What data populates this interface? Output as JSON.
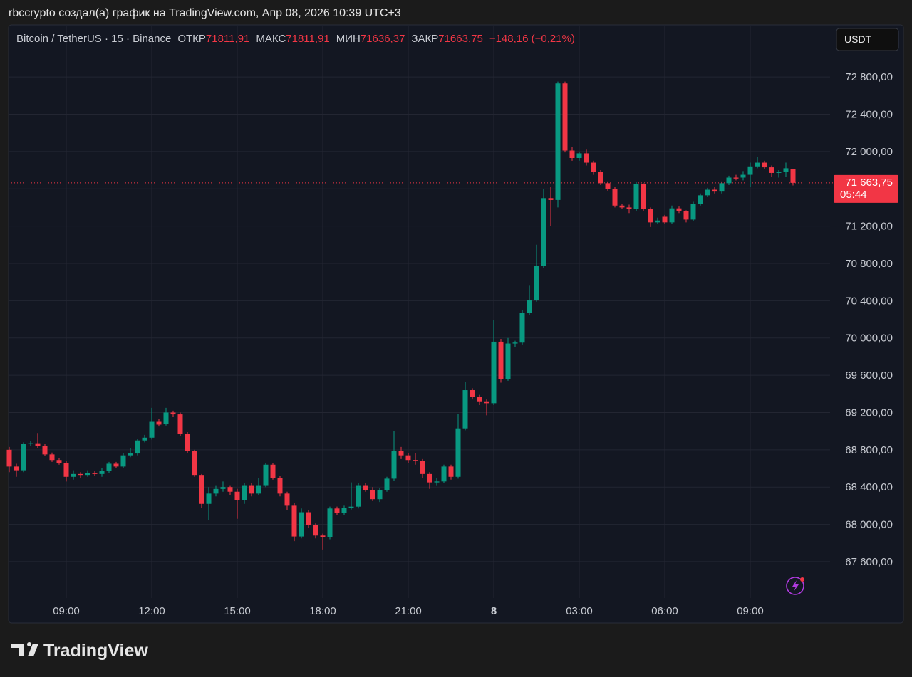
{
  "header": {
    "attribution": "rbccrypto создал(а) график на TradingView.com, Апр 08, 2026 10:39 UTC+3",
    "logo": "TradingView"
  },
  "chart_data": {
    "type": "candlestick",
    "symbol": "Bitcoin / TetherUS · 15 · Binance",
    "legend": [
      {
        "label": "ОТКР",
        "value": "71811,91"
      },
      {
        "label": "МАКС",
        "value": "71811,91"
      },
      {
        "label": "МИН",
        "value": "71636,37"
      },
      {
        "label": "ЗАКР",
        "value": "71663,75"
      }
    ],
    "change": "−148,16 (−0,21%)",
    "currency": "USDT",
    "last_price": {
      "label": "71 663,75",
      "countdown": "05:44"
    },
    "up_color": "#089981",
    "down_color": "#f23645",
    "grid": true,
    "ylim": [
      67210,
      73320
    ],
    "yticks": [
      {
        "value": 67600,
        "label": "67 600,00"
      },
      {
        "value": 68000,
        "label": "68 000,00"
      },
      {
        "value": 68400,
        "label": "68 400,00"
      },
      {
        "value": 68800,
        "label": "68 800,00"
      },
      {
        "value": 69200,
        "label": "69 200,00"
      },
      {
        "value": 69600,
        "label": "69 600,00"
      },
      {
        "value": 70000,
        "label": "70 000,00"
      },
      {
        "value": 70400,
        "label": "70 400,00"
      },
      {
        "value": 70800,
        "label": "70 800,00"
      },
      {
        "value": 71200,
        "label": "71 200,00"
      },
      {
        "value": 71600,
        "label": "71 600,00"
      },
      {
        "value": 72000,
        "label": "72 000,00"
      },
      {
        "value": 72400,
        "label": "72 400,00"
      },
      {
        "value": 72800,
        "label": "72 800,00"
      }
    ],
    "categories": [
      null,
      null,
      null,
      null,
      null,
      null,
      null,
      null,
      "09:00",
      null,
      null,
      null,
      null,
      null,
      null,
      null,
      null,
      null,
      null,
      null,
      "12:00",
      null,
      null,
      null,
      null,
      null,
      null,
      null,
      null,
      null,
      null,
      null,
      "15:00",
      null,
      null,
      null,
      null,
      null,
      null,
      null,
      null,
      null,
      null,
      null,
      "18:00",
      null,
      null,
      null,
      null,
      null,
      null,
      null,
      null,
      null,
      null,
      null,
      "21:00",
      null,
      null,
      null,
      null,
      null,
      null,
      null,
      null,
      null,
      null,
      null,
      "8",
      null,
      null,
      null,
      null,
      null,
      null,
      null,
      null,
      null,
      null,
      null,
      "03:00",
      null,
      null,
      null,
      null,
      null,
      null,
      null,
      null,
      null,
      null,
      null,
      "06:00",
      null,
      null,
      null,
      null,
      null,
      null,
      null,
      null,
      null,
      null,
      null,
      "09:00",
      null,
      null,
      null,
      null,
      null,
      null
    ],
    "open": [
      68800,
      68620,
      68580,
      68860,
      68870,
      68840,
      68750,
      68690,
      68660,
      68510,
      68540,
      68530,
      68550,
      68540,
      68570,
      68650,
      68620,
      68740,
      68760,
      68900,
      68930,
      69100,
      69080,
      69200,
      69180,
      68970,
      68790,
      68530,
      68220,
      68330,
      68380,
      68400,
      68350,
      68260,
      68420,
      68330,
      68420,
      68640,
      68500,
      68330,
      68200,
      67870,
      68130,
      67990,
      67880,
      67860,
      68170,
      68120,
      68180,
      68190,
      68420,
      68370,
      68270,
      68370,
      68490,
      68790,
      68740,
      68690,
      68680,
      68540,
      68450,
      68460,
      68620,
      68510,
      69030,
      69440,
      69370,
      69320,
      69300,
      69960,
      69560,
      69940,
      69950,
      70270,
      70410,
      70770,
      71500,
      71480,
      72730,
      72010,
      71930,
      71980,
      71880,
      71780,
      71660,
      71600,
      71420,
      71400,
      71380,
      71650,
      71380,
      71240,
      71300,
      71240,
      71390,
      71360,
      71270,
      71440,
      71530,
      71590,
      71570,
      71660,
      71720,
      71720,
      71750,
      71840,
      71880,
      71830,
      71770,
      71780,
      71811.91
    ],
    "high": [
      68830,
      68650,
      68880,
      68890,
      68980,
      68860,
      68770,
      68710,
      68680,
      68580,
      68560,
      68580,
      68570,
      68600,
      68670,
      68670,
      68760,
      68820,
      68920,
      68960,
      69250,
      69130,
      69250,
      69220,
      69200,
      68990,
      68800,
      68540,
      68400,
      68420,
      68460,
      68420,
      68380,
      68440,
      68440,
      68500,
      68660,
      68660,
      68520,
      68350,
      68230,
      68170,
      68150,
      68010,
      67900,
      68190,
      68190,
      68200,
      68450,
      68440,
      68440,
      68400,
      68390,
      68510,
      69000,
      68830,
      68760,
      68760,
      68700,
      68560,
      68500,
      68640,
      68640,
      69180,
      69530,
      69460,
      69390,
      69340,
      70190,
      69990,
      70000,
      69970,
      70300,
      70560,
      71000,
      71600,
      71620,
      72750,
      72750,
      72050,
      72000,
      72020,
      71900,
      71800,
      71680,
      71620,
      71440,
      71430,
      71670,
      71660,
      71400,
      71290,
      71320,
      71420,
      71410,
      71370,
      71460,
      71550,
      71610,
      71620,
      71680,
      71740,
      71750,
      71790,
      71880,
      71940,
      71900,
      71850,
      71800,
      71880,
      71811.91
    ],
    "low": [
      68560,
      68510,
      68560,
      68840,
      68820,
      68730,
      68670,
      68640,
      68460,
      68480,
      68500,
      68510,
      68520,
      68510,
      68550,
      68600,
      68600,
      68720,
      68740,
      68880,
      68910,
      69050,
      69060,
      69150,
      68950,
      68760,
      68510,
      68180,
      68050,
      68300,
      68350,
      68310,
      68060,
      68220,
      68300,
      68310,
      68400,
      68480,
      68300,
      68150,
      67820,
      67850,
      67960,
      67850,
      67730,
      67840,
      68100,
      68100,
      68160,
      68170,
      68350,
      68250,
      68240,
      68350,
      68470,
      68700,
      68660,
      68640,
      68500,
      68380,
      68420,
      68440,
      68480,
      68490,
      69010,
      69340,
      69280,
      69170,
      69280,
      69520,
      69540,
      69900,
      69930,
      70250,
      70390,
      70750,
      71200,
      71400,
      71990,
      71900,
      71900,
      71850,
      71750,
      71640,
      71580,
      71400,
      71380,
      71340,
      71360,
      71360,
      71190,
      71220,
      71220,
      71220,
      71340,
      71240,
      71250,
      71420,
      71510,
      71550,
      71550,
      71640,
      71690,
      71690,
      71620,
      71820,
      71810,
      71730,
      71720,
      71730,
      71636.37
    ],
    "close": [
      68620,
      68580,
      68860,
      68870,
      68840,
      68750,
      68690,
      68660,
      68510,
      68540,
      68530,
      68550,
      68540,
      68570,
      68650,
      68620,
      68740,
      68760,
      68900,
      68930,
      69100,
      69070,
      69200,
      69180,
      68970,
      68790,
      68530,
      68220,
      68330,
      68380,
      68400,
      68350,
      68260,
      68420,
      68330,
      68420,
      68640,
      68500,
      68330,
      68200,
      67870,
      68130,
      67990,
      67880,
      67860,
      68170,
      68120,
      68180,
      68190,
      68420,
      68370,
      68270,
      68370,
      68490,
      68790,
      68740,
      68690,
      68680,
      68540,
      68450,
      68460,
      68620,
      68510,
      69030,
      69440,
      69370,
      69320,
      69300,
      69960,
      69560,
      69940,
      69950,
      70270,
      70410,
      70770,
      71500,
      71480,
      72730,
      72010,
      71930,
      71980,
      71880,
      71780,
      71660,
      71600,
      71420,
      71400,
      71380,
      71650,
      71380,
      71240,
      71260,
      71240,
      71390,
      71360,
      71270,
      71440,
      71530,
      71590,
      71570,
      71660,
      71720,
      71710,
      71750,
      71840,
      71880,
      71830,
      71770,
      71780,
      71820,
      71663.75
    ]
  }
}
